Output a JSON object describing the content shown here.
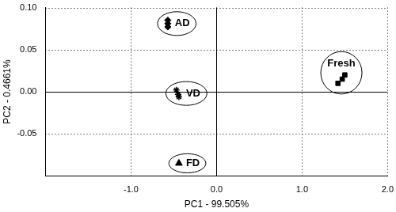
{
  "chart_data": {
    "type": "scatter",
    "x_label": "PC1 - 99.505%",
    "y_label": "PC2 - 0.4661%",
    "xlim": [
      -2.0,
      2.0
    ],
    "xticks": [
      {
        "value": -1,
        "label": "-1.0"
      },
      {
        "value": 0,
        "label": "0.0"
      },
      {
        "value": 1,
        "label": "1.0"
      },
      {
        "value": 2,
        "label": "2.0"
      }
    ],
    "ylim": [
      -0.1,
      0.1
    ],
    "yticks": [
      {
        "value": -0.05,
        "label": "-0.05"
      },
      {
        "value": 0,
        "label": "0.00"
      },
      {
        "value": 0.05,
        "label": "0.05"
      },
      {
        "value": 0.1,
        "label": "0.10"
      }
    ],
    "grid": true,
    "series": [
      {
        "name": "AD",
        "color": "#000000",
        "marker": "diamond",
        "x": [
          -0.57,
          -0.57,
          -0.57
        ],
        "values": [
          0.085,
          0.081,
          0.077
        ]
      },
      {
        "name": "VD",
        "color": "#000000",
        "marker": "star",
        "x": [
          -0.47,
          -0.45,
          -0.44
        ],
        "values": [
          0.002,
          -0.003,
          -0.006
        ]
      },
      {
        "name": "FD",
        "color": "#000000",
        "marker": "triangle",
        "x": [
          -0.44
        ],
        "values": [
          -0.085
        ]
      },
      {
        "name": "Fresh",
        "color": "#000000",
        "marker": "square",
        "x": [
          1.42,
          1.47,
          1.5
        ],
        "values": [
          0.01,
          0.015,
          0.02
        ]
      }
    ]
  }
}
